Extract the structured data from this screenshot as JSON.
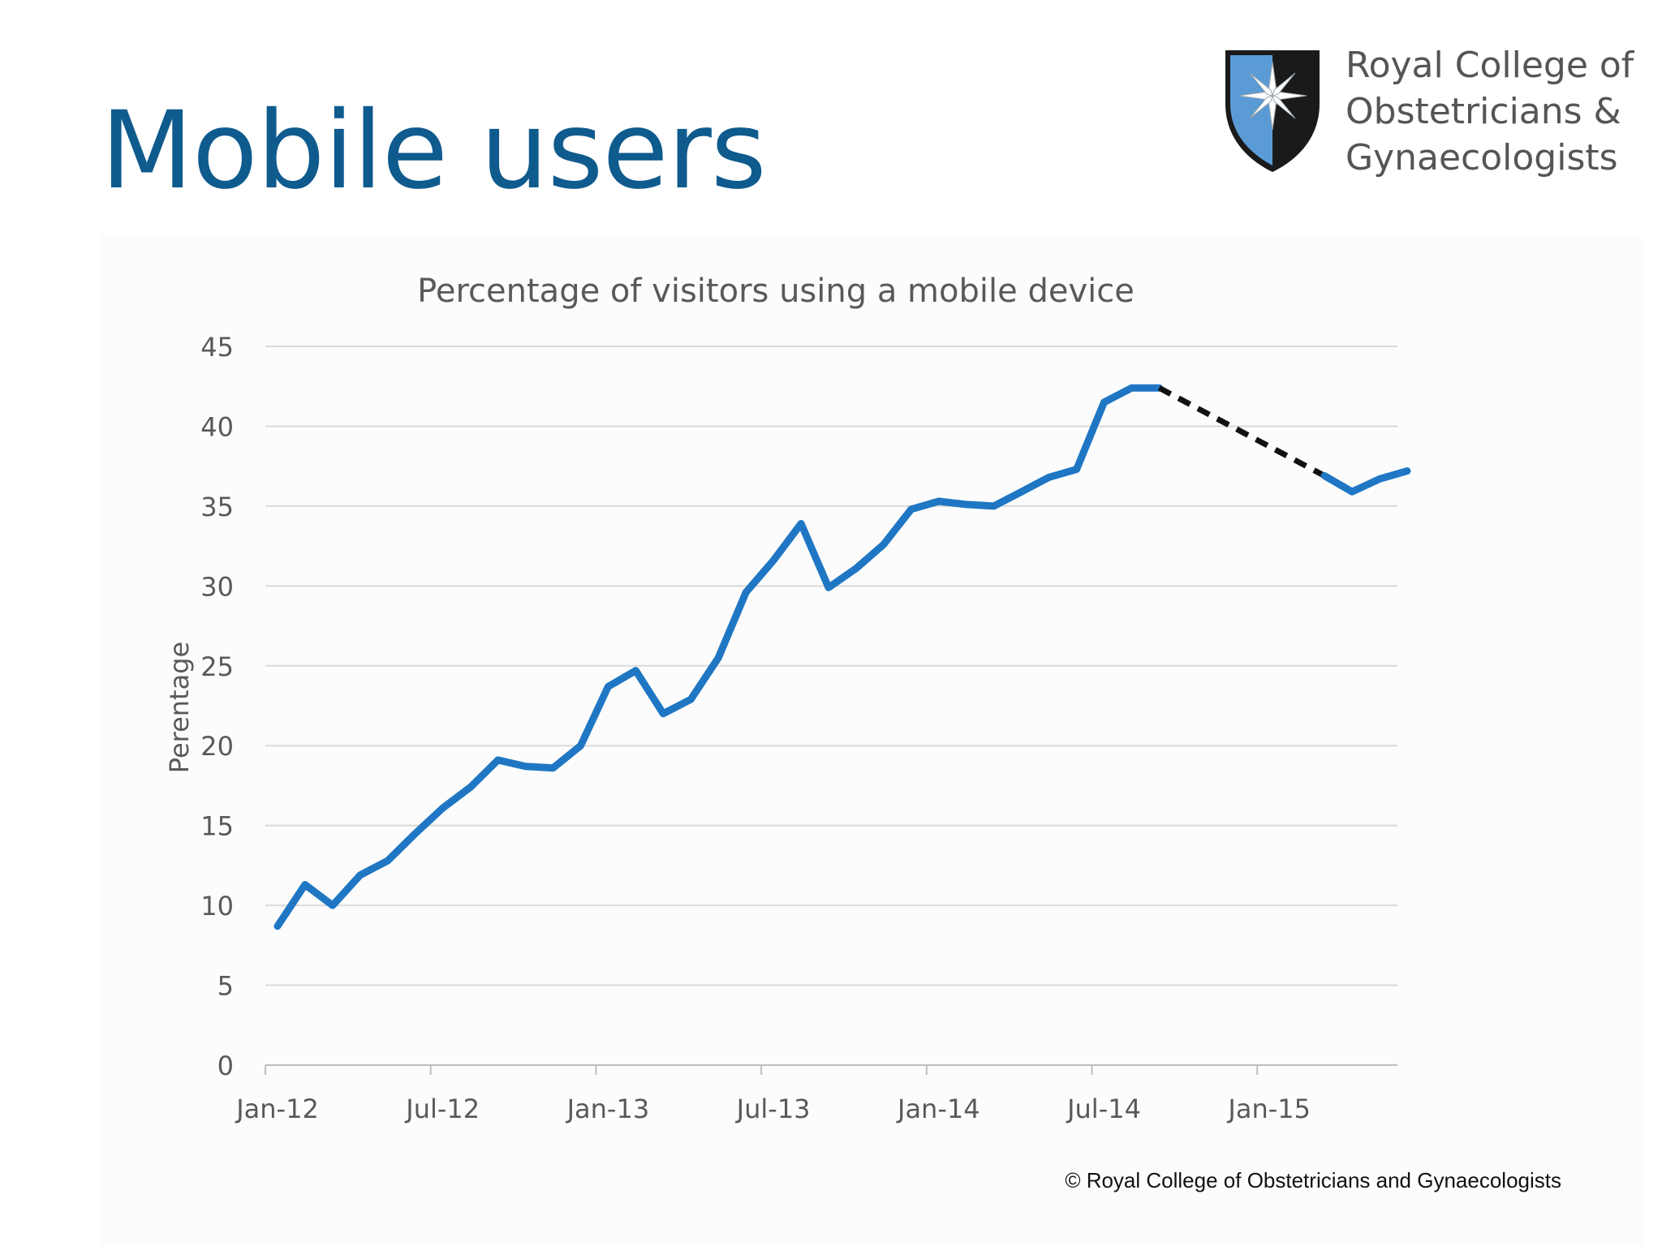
{
  "slide": {
    "title": "Mobile users",
    "copyright": "© Royal College of Obstetricians and Gynaecologists"
  },
  "logo": {
    "lines": [
      "Royal College of",
      "Obstetricians &",
      "Gynaecologists"
    ],
    "colors": {
      "shield_blue": "#5b9bd5",
      "shield_dark": "#1a1a1a",
      "text": "#555555"
    }
  },
  "colors": {
    "title": "#0f5b8e",
    "line": "#1f77c4",
    "dashed": "#111111",
    "grid": "#d9d9d9",
    "axis_text": "#595959"
  },
  "chart_data": {
    "type": "line",
    "title": "Percentage of visitors using a mobile device",
    "xlabel": "",
    "ylabel": "Perentage",
    "ylim": [
      0,
      45
    ],
    "yticks": [
      0,
      5,
      10,
      15,
      20,
      25,
      30,
      35,
      40,
      45
    ],
    "xlim": [
      "2012-01",
      "2015-09"
    ],
    "xtick_labels": [
      "Jan-12",
      "Jul-12",
      "Jan-13",
      "Jul-13",
      "Jan-14",
      "Jul-14",
      "Jan-15"
    ],
    "grid": true,
    "series": [
      {
        "style": "solid",
        "x": [
          "2012-01",
          "2012-02",
          "2012-03",
          "2012-04",
          "2012-05",
          "2012-06",
          "2012-07",
          "2012-08",
          "2012-09",
          "2012-10",
          "2012-11",
          "2012-12",
          "2013-01",
          "2013-02",
          "2013-03",
          "2013-04",
          "2013-05",
          "2013-06",
          "2013-07",
          "2013-08",
          "2013-09",
          "2013-10",
          "2013-11",
          "2013-12",
          "2014-01",
          "2014-02",
          "2014-03",
          "2014-04",
          "2014-05",
          "2014-06",
          "2014-07",
          "2014-08",
          "2014-09"
        ],
        "values": [
          8.7,
          11.3,
          10.0,
          11.9,
          12.8,
          14.5,
          16.1,
          17.4,
          19.1,
          18.7,
          18.6,
          20.0,
          23.7,
          24.7,
          22.0,
          22.9,
          25.5,
          29.6,
          31.6,
          33.9,
          29.9,
          31.1,
          32.6,
          34.8,
          35.3,
          35.1,
          35.0,
          35.9,
          36.8,
          37.3,
          41.5,
          42.4,
          42.4
        ]
      },
      {
        "style": "dashed",
        "x": [
          "2014-09",
          "2015-03"
        ],
        "values": [
          42.4,
          36.9
        ]
      },
      {
        "style": "solid",
        "x": [
          "2015-03",
          "2015-04",
          "2015-05",
          "2015-06"
        ],
        "values": [
          36.9,
          35.9,
          36.7,
          37.2
        ]
      }
    ]
  }
}
